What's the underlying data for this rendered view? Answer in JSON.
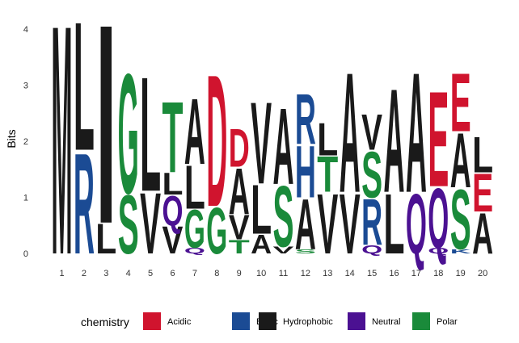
{
  "chart_data": {
    "type": "sequence-logo",
    "ylabel": "Bits",
    "xlabel": "",
    "ylim": [
      0,
      4.32
    ],
    "yticks": [
      0,
      1,
      2,
      3,
      4
    ],
    "positions": [
      {
        "pos": 1,
        "label": "1",
        "stack": [
          {
            "letter": "M",
            "height": 4.21
          }
        ]
      },
      {
        "pos": 2,
        "label": "2",
        "stack": [
          {
            "letter": "R",
            "height": 1.85
          },
          {
            "letter": "L",
            "height": 2.36
          }
        ]
      },
      {
        "pos": 3,
        "label": "3",
        "stack": [
          {
            "letter": "L",
            "height": 0.55
          },
          {
            "letter": "I",
            "height": 3.66
          }
        ]
      },
      {
        "pos": 4,
        "label": "4",
        "stack": [
          {
            "letter": "S",
            "height": 1.08
          },
          {
            "letter": "G",
            "height": 2.2
          }
        ]
      },
      {
        "pos": 5,
        "label": "5",
        "stack": [
          {
            "letter": "V",
            "height": 1.12
          },
          {
            "letter": "L",
            "height": 2.1
          }
        ]
      },
      {
        "pos": 6,
        "label": "6",
        "stack": [
          {
            "letter": "V",
            "height": 0.5
          },
          {
            "letter": "Q",
            "height": 0.55
          },
          {
            "letter": "L",
            "height": 0.4
          },
          {
            "letter": "T",
            "height": 1.3
          }
        ]
      },
      {
        "pos": 7,
        "label": "7",
        "stack": [
          {
            "letter": "Q",
            "height": 0.1
          },
          {
            "letter": "G",
            "height": 0.7
          },
          {
            "letter": "L",
            "height": 0.8
          },
          {
            "letter": "A",
            "height": 1.2
          }
        ]
      },
      {
        "pos": 8,
        "label": "8",
        "stack": [
          {
            "letter": "G",
            "height": 0.85
          },
          {
            "letter": "D",
            "height": 2.42
          }
        ]
      },
      {
        "pos": 9,
        "label": "9",
        "stack": [
          {
            "letter": "T",
            "height": 0.25
          },
          {
            "letter": "V",
            "height": 0.45
          },
          {
            "letter": "A",
            "height": 0.85
          },
          {
            "letter": "D",
            "height": 0.7
          }
        ]
      },
      {
        "pos": 10,
        "label": "10",
        "stack": [
          {
            "letter": "A",
            "height": 0.35
          },
          {
            "letter": "L",
            "height": 0.9
          },
          {
            "letter": "V",
            "height": 1.5
          }
        ]
      },
      {
        "pos": 11,
        "label": "11",
        "stack": [
          {
            "letter": "V",
            "height": 0.12
          },
          {
            "letter": "S",
            "height": 1.12
          },
          {
            "letter": "A",
            "height": 1.4
          }
        ]
      },
      {
        "pos": 12,
        "label": "12",
        "stack": [
          {
            "letter": "S",
            "height": 0.08
          },
          {
            "letter": "A",
            "height": 0.92
          },
          {
            "letter": "H",
            "height": 0.95
          },
          {
            "letter": "R",
            "height": 0.92
          }
        ]
      },
      {
        "pos": 13,
        "label": "13",
        "stack": [
          {
            "letter": "V",
            "height": 1.1
          },
          {
            "letter": "T",
            "height": 0.65
          },
          {
            "letter": "L",
            "height": 0.6
          }
        ]
      },
      {
        "pos": 14,
        "label": "14",
        "stack": [
          {
            "letter": "V",
            "height": 1.1
          },
          {
            "letter": "A",
            "height": 2.2
          }
        ]
      },
      {
        "pos": 15,
        "label": "15",
        "stack": [
          {
            "letter": "Q",
            "height": 0.15
          },
          {
            "letter": "R",
            "height": 0.85
          },
          {
            "letter": "S",
            "height": 0.85
          },
          {
            "letter": "V",
            "height": 0.65
          }
        ]
      },
      {
        "pos": 16,
        "label": "16",
        "stack": [
          {
            "letter": "L",
            "height": 1.1
          },
          {
            "letter": "A",
            "height": 1.9
          }
        ]
      },
      {
        "pos": 17,
        "label": "17",
        "stack": [
          {
            "letter": "Q",
            "height": 1.1
          },
          {
            "letter": "A",
            "height": 2.2
          }
        ]
      },
      {
        "pos": 18,
        "label": "18",
        "stack": [
          {
            "letter": "Q",
            "height": 0.1
          },
          {
            "letter": "Q",
            "height": 1.1
          },
          {
            "letter": "E",
            "height": 1.75
          }
        ]
      },
      {
        "pos": 19,
        "label": "19",
        "stack": [
          {
            "letter": "K",
            "height": 0.08
          },
          {
            "letter": "S",
            "height": 1.1
          },
          {
            "letter": "A",
            "height": 1.0
          },
          {
            "letter": "E",
            "height": 1.07
          }
        ]
      },
      {
        "pos": 20,
        "label": "20",
        "stack": [
          {
            "letter": "A",
            "height": 0.75
          },
          {
            "letter": "E",
            "height": 0.7
          },
          {
            "letter": "L",
            "height": 0.65
          }
        ]
      }
    ],
    "legend": {
      "title": "chemistry",
      "placement": "bottom",
      "entries": [
        {
          "name": "Acidic",
          "color": "#d0142e"
        },
        {
          "name": "Basic",
          "color": "#1b4b94"
        },
        {
          "name": "Hydrophobic",
          "color": "#1a1a1a"
        },
        {
          "name": "Neutral",
          "color": "#4b1192"
        },
        {
          "name": "Polar",
          "color": "#1a8a3a"
        }
      ]
    },
    "letter_chemistry": {
      "D": "Acidic",
      "E": "Acidic",
      "R": "Basic",
      "H": "Basic",
      "K": "Basic",
      "A": "Hydrophobic",
      "V": "Hydrophobic",
      "L": "Hydrophobic",
      "I": "Hydrophobic",
      "M": "Hydrophobic",
      "F": "Hydrophobic",
      "W": "Hydrophobic",
      "P": "Hydrophobic",
      "Q": "Neutral",
      "N": "Neutral",
      "S": "Polar",
      "G": "Polar",
      "T": "Polar",
      "Y": "Polar",
      "C": "Polar"
    }
  }
}
